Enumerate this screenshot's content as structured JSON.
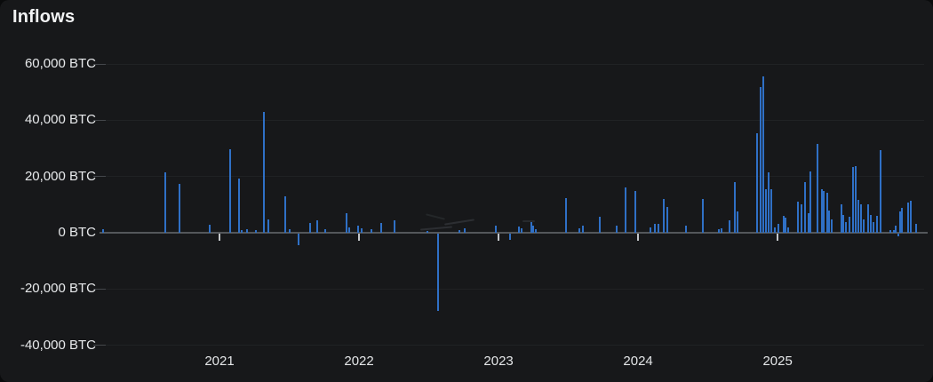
{
  "title": "Inflows",
  "colors": {
    "panel_background": "#17181a",
    "bar": "#2f70c6",
    "zero_axis": "#54575b",
    "gridline": "#202224",
    "label_text": "#e8eaec"
  },
  "chart_data": {
    "type": "bar",
    "title": "Inflows",
    "unit": "BTC",
    "xlabel": "",
    "ylabel": "",
    "grid": true,
    "legend": false,
    "xlim": [
      2020.14,
      2026.05
    ],
    "ylim": [
      -40000,
      60000
    ],
    "y_ticks": [
      {
        "value": 60000,
        "label": "60,000 BTC"
      },
      {
        "value": 40000,
        "label": "40,000 BTC"
      },
      {
        "value": 20000,
        "label": "20,000 BTC"
      },
      {
        "value": 0,
        "label": "0 BTC"
      },
      {
        "value": -20000,
        "label": "-20,000 BTC"
      },
      {
        "value": -40000,
        "label": "-40,000 BTC"
      }
    ],
    "x_ticks": [
      {
        "value": 2021,
        "label": "2021"
      },
      {
        "value": 2022,
        "label": "2022"
      },
      {
        "value": 2023,
        "label": "2023"
      },
      {
        "value": 2024,
        "label": "2024"
      },
      {
        "value": 2025,
        "label": "2025"
      }
    ],
    "points": [
      [
        2020.167,
        1200
      ],
      [
        2020.612,
        21500
      ],
      [
        2020.714,
        17300
      ],
      [
        2020.93,
        2800
      ],
      [
        2021.076,
        29600
      ],
      [
        2021.14,
        19200
      ],
      [
        2021.159,
        900
      ],
      [
        2021.197,
        1300
      ],
      [
        2021.261,
        800
      ],
      [
        2021.318,
        43000
      ],
      [
        2021.35,
        4700
      ],
      [
        2021.47,
        12900
      ],
      [
        2021.502,
        1300
      ],
      [
        2021.566,
        -4100
      ],
      [
        2021.648,
        3400
      ],
      [
        2021.699,
        4400
      ],
      [
        2021.757,
        1200
      ],
      [
        2021.909,
        7000
      ],
      [
        2021.928,
        1900
      ],
      [
        2021.992,
        2500
      ],
      [
        2022.017,
        1500
      ],
      [
        2022.087,
        1300
      ],
      [
        2022.157,
        3500
      ],
      [
        2022.252,
        4400
      ],
      [
        2022.488,
        700
      ],
      [
        2022.564,
        -27500
      ],
      [
        2022.717,
        1000
      ],
      [
        2022.755,
        1500
      ],
      [
        2022.983,
        2400
      ],
      [
        2023.085,
        -2200
      ],
      [
        2023.149,
        2200
      ],
      [
        2023.168,
        1500
      ],
      [
        2023.232,
        3800
      ],
      [
        2023.251,
        2400
      ],
      [
        2023.27,
        1400
      ],
      [
        2023.486,
        12300
      ],
      [
        2023.581,
        1500
      ],
      [
        2023.607,
        2400
      ],
      [
        2023.727,
        5700
      ],
      [
        2023.848,
        2500
      ],
      [
        2023.912,
        16100
      ],
      [
        2023.982,
        14800
      ],
      [
        2024.09,
        1900
      ],
      [
        2024.122,
        3100
      ],
      [
        2024.147,
        3300
      ],
      [
        2024.185,
        12000
      ],
      [
        2024.211,
        9100
      ],
      [
        2024.344,
        2500
      ],
      [
        2024.465,
        12000
      ],
      [
        2024.579,
        1200
      ],
      [
        2024.598,
        1500
      ],
      [
        2024.656,
        4400
      ],
      [
        2024.694,
        18000
      ],
      [
        2024.713,
        7600
      ],
      [
        2024.853,
        35300
      ],
      [
        2024.878,
        51800
      ],
      [
        2024.897,
        55500
      ],
      [
        2024.916,
        15400
      ],
      [
        2024.935,
        21400
      ],
      [
        2024.954,
        15400
      ],
      [
        2024.98,
        2000
      ],
      [
        2025.005,
        3100
      ],
      [
        2025.043,
        6000
      ],
      [
        2025.056,
        5500
      ],
      [
        2025.075,
        1900
      ],
      [
        2025.145,
        11000
      ],
      [
        2025.17,
        10000
      ],
      [
        2025.196,
        18000
      ],
      [
        2025.221,
        7000
      ],
      [
        2025.234,
        21700
      ],
      [
        2025.285,
        31500
      ],
      [
        2025.317,
        15400
      ],
      [
        2025.329,
        15000
      ],
      [
        2025.355,
        14200
      ],
      [
        2025.367,
        7900
      ],
      [
        2025.386,
        4700
      ],
      [
        2025.456,
        10000
      ],
      [
        2025.469,
        6300
      ],
      [
        2025.488,
        3800
      ],
      [
        2025.513,
        5700
      ],
      [
        2025.539,
        23300
      ],
      [
        2025.558,
        23600
      ],
      [
        2025.577,
        11700
      ],
      [
        2025.596,
        10000
      ],
      [
        2025.615,
        4700
      ],
      [
        2025.647,
        10000
      ],
      [
        2025.666,
        6300
      ],
      [
        2025.685,
        3800
      ],
      [
        2025.711,
        6000
      ],
      [
        2025.736,
        29300
      ],
      [
        2025.806,
        900
      ],
      [
        2025.831,
        1000
      ],
      [
        2025.844,
        2500
      ],
      [
        2025.863,
        -1000
      ],
      [
        2025.876,
        7600
      ],
      [
        2025.888,
        8800
      ],
      [
        2025.933,
        10700
      ],
      [
        2025.952,
        11300
      ],
      [
        2025.99,
        3100
      ]
    ]
  }
}
